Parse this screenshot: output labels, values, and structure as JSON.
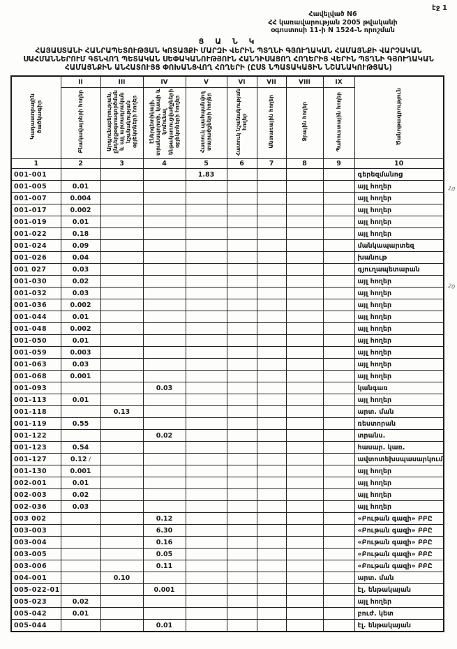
{
  "page": {
    "page_number": "էջ 1",
    "appendix_line1": "Հավելված N6",
    "appendix_line2": "ՀՀ կառավարության 2005 թվականի",
    "appendix_line3": "օգոստոսի 11-ի N 1524-Ն որոշման",
    "title_word": "Ց Ա Ն Կ",
    "title": "ՀԱՅԱՍՏԱՆԻ ՀԱՆՐԱՊԵՏՈՒԹՅԱՆ ԿՈՏԱՅՔԻ ՄԱՐԶԻ ՎԵՐԻՆ ՊՏՂՆԻ ԳՅՈՒՂԱԿԱՆ ՀԱՄԱՅՆՔԻ ՎԱՐՉԱԿԱՆ ՍԱՀՄԱՆՆԵՐՈՒՄ ԳՏՆՎՈՂ ՊԵՏԱԿԱՆ ՍԵՓԱԿԱՆՈՒԹՅՈՒՆ ՀԱՆԴԻՍԱՑՈՂ ՀՈՂԵՐԻՑ ՎԵՐԻՆ ՊՏՂՆԻ ԳՅՈՒՂԱԿԱՆ ՀԱՄԱՅՆՔԻՆ ԱՆՀԱՏՈՒՅՑ ՓՈԽԱՆՑՎՈՂ ՀՈՂԵՐԻ (ԸՍՏ ՆՊԱՏԱԿԱՅԻՆ ՆՇԱՆԱԿՈՒԹՅԱՆ)"
  },
  "table": {
    "corner_header": "Կադաստրային ծածկագիր",
    "notes_header": "Ծանոթագրություն",
    "roman_numerals": [
      "II",
      "III",
      "IV",
      "V",
      "VI",
      "VII",
      "VIII",
      "IX"
    ],
    "category_headers": [
      "Բնակավայրերի հողեր",
      "Արդյունաբերության, ընդերքօգտագործման և այլ արտադրական նշանակության օբյեկտների հողեր",
      "Էներգետիկայի, տրանսպորտի, կապի և կոմունալ ենթակառուցվածքների օբյեկտների հողեր",
      "Հատուկ պահպանվող տարածքների հողեր",
      "Հատուկ նշանակության հողեր",
      "Անտառային հողեր",
      "Ջրային հողեր",
      "Պահուստային հողեր"
    ],
    "column_numbers": [
      "1",
      "2",
      "3",
      "4",
      "5",
      "6",
      "7",
      "8",
      "9",
      "10"
    ],
    "rows": [
      {
        "cells": [
          "001-001",
          "",
          "",
          "",
          "1.83",
          "",
          "",
          "",
          "",
          "գերեզմանոց"
        ]
      },
      {
        "cells": [
          "001-005",
          "0.01",
          "",
          "",
          "",
          "",
          "",
          "",
          "",
          "այլ հողեր"
        ]
      },
      {
        "cells": [
          "001-007",
          "0.004",
          "",
          "",
          "",
          "",
          "",
          "",
          "",
          "այլ հողեր"
        ]
      },
      {
        "cells": [
          "001-017",
          "0.002",
          "",
          "",
          "",
          "",
          "",
          "",
          "",
          "այլ հողեր"
        ]
      },
      {
        "cells": [
          "001-019",
          "0.01",
          "",
          "",
          "",
          "",
          "",
          "",
          "",
          "այլ հողեր"
        ]
      },
      {
        "cells": [
          "001-022",
          "0.18",
          "",
          "",
          "",
          "",
          "",
          "",
          "",
          "այլ հողեր"
        ]
      },
      {
        "cells": [
          "001-024",
          "0.09",
          "",
          "",
          "",
          "",
          "",
          "",
          "",
          "մանկապարտեզ"
        ]
      },
      {
        "cells": [
          "001-026",
          "0.04",
          "",
          "",
          "",
          "",
          "",
          "",
          "",
          "խանութ"
        ]
      },
      {
        "cells": [
          "001 027",
          "0.03",
          "",
          "",
          "",
          "",
          "",
          "",
          "",
          "գյուղապետարան"
        ]
      },
      {
        "cells": [
          "001-030",
          "0.02",
          "",
          "",
          "",
          "",
          "",
          "",
          "",
          "այլ հողեր"
        ]
      },
      {
        "cells": [
          "001-032",
          "0.03",
          "",
          "",
          "",
          "",
          "",
          "",
          "",
          "այլ հողեր"
        ]
      },
      {
        "cells": [
          "001-036",
          "0.002",
          "",
          "",
          "",
          "",
          "",
          "",
          "",
          "այլ հողեր"
        ]
      },
      {
        "cells": [
          "001-044",
          "0.01",
          "",
          "",
          "",
          "",
          "",
          "",
          "",
          "այլ հողեր"
        ]
      },
      {
        "cells": [
          "001-048",
          "0.002",
          "",
          "",
          "",
          "",
          "",
          "",
          "",
          "այլ հողեր"
        ]
      },
      {
        "cells": [
          "001-050",
          "0.01",
          "",
          "",
          "",
          "",
          "",
          "",
          "",
          "այլ հողեր"
        ]
      },
      {
        "cells": [
          "001-059",
          "0.003",
          "",
          "",
          "",
          "",
          "",
          "",
          "",
          "այլ հողեր"
        ]
      },
      {
        "cells": [
          "001-063",
          "0.03",
          "",
          "",
          "",
          "",
          "",
          "",
          "",
          "այլ հողեր"
        ]
      },
      {
        "cells": [
          "001-068",
          "0.001",
          "",
          "",
          "",
          "",
          "",
          "",
          "",
          "այլ հողեր"
        ]
      },
      {
        "cells": [
          "001-093",
          "",
          "",
          "0.03",
          "",
          "",
          "",
          "",
          "",
          "կանգառ"
        ]
      },
      {
        "cells": [
          "001-113",
          "0.01",
          "",
          "",
          "",
          "",
          "",
          "",
          "",
          "այլ հողեր"
        ]
      },
      {
        "cells": [
          "001-118",
          "",
          "0.13",
          "",
          "",
          "",
          "",
          "",
          "",
          "արտ. ման"
        ]
      },
      {
        "cells": [
          "001-119",
          "0.55",
          "",
          "",
          "",
          "",
          "",
          "",
          "",
          "ռեստորան"
        ]
      },
      {
        "cells": [
          "001-122",
          "",
          "",
          "0.02",
          "",
          "",
          "",
          "",
          "",
          "տրանս."
        ]
      },
      {
        "cells": [
          "001-123",
          "0.54",
          "",
          "",
          "",
          "",
          "",
          "",
          "",
          "հասար. կառ."
        ]
      },
      {
        "cells": [
          "001-127",
          "0.12",
          "",
          "",
          "",
          "",
          "",
          "",
          "",
          "ավտոտեխսպասարկում"
        ],
        "mark": "/"
      },
      {
        "cells": [
          "001-130",
          "0.001",
          "",
          "",
          "",
          "",
          "",
          "",
          "",
          "այլ հողեր"
        ]
      },
      {
        "cells": [
          "002-001",
          "0.01",
          "",
          "",
          "",
          "",
          "",
          "",
          "",
          "այլ հողեր"
        ]
      },
      {
        "cells": [
          "002-003",
          "0.02",
          "",
          "",
          "",
          "",
          "",
          "",
          "",
          "այլ հողեր"
        ]
      },
      {
        "cells": [
          "002-036",
          "0.03",
          "",
          "",
          "",
          "",
          "",
          "",
          "",
          "այլ հողեր"
        ]
      },
      {
        "cells": [
          "003 002",
          "",
          "",
          "0.12",
          "",
          "",
          "",
          "",
          "",
          "«Բութան գազի» ԲԲԸ"
        ]
      },
      {
        "cells": [
          "003-003",
          "",
          "",
          "6.30",
          "",
          "",
          "",
          "",
          "",
          "«Բութան գազի» ԲԲԸ"
        ]
      },
      {
        "cells": [
          "003-004",
          "",
          "",
          "0.16",
          "",
          "",
          "",
          "",
          "",
          "«Բութան գազի» ԲԲԸ"
        ]
      },
      {
        "cells": [
          "003-005",
          "",
          "",
          "0.05",
          "",
          "",
          "",
          "",
          "",
          "«Բութան գազի» ԲԲԸ"
        ]
      },
      {
        "cells": [
          "003-006",
          "",
          "",
          "0.11",
          "",
          "",
          "",
          "",
          "",
          "«Բութան գազի» ԲԲԸ"
        ]
      },
      {
        "cells": [
          "004-001",
          "",
          "0.10",
          "",
          "",
          "",
          "",
          "",
          "",
          "արտ. ման"
        ]
      },
      {
        "cells": [
          "005-022-01",
          "",
          "",
          "0.001",
          "",
          "",
          "",
          "",
          "",
          "էլ. ենթակայան"
        ]
      },
      {
        "cells": [
          "005-023",
          "0.02",
          "",
          "",
          "",
          "",
          "",
          "",
          "",
          "այլ հողեր"
        ]
      },
      {
        "cells": [
          "005-042",
          "0.01",
          "",
          "",
          "",
          "",
          "",
          "",
          "",
          "բուժ. կետ"
        ]
      },
      {
        "cells": [
          "005-044",
          "",
          "",
          "0.01",
          "",
          "",
          "",
          "",
          "",
          "էլ. ենթակայան"
        ]
      }
    ]
  },
  "margin_marks": {
    "mark1": "10",
    "mark2": "20"
  }
}
